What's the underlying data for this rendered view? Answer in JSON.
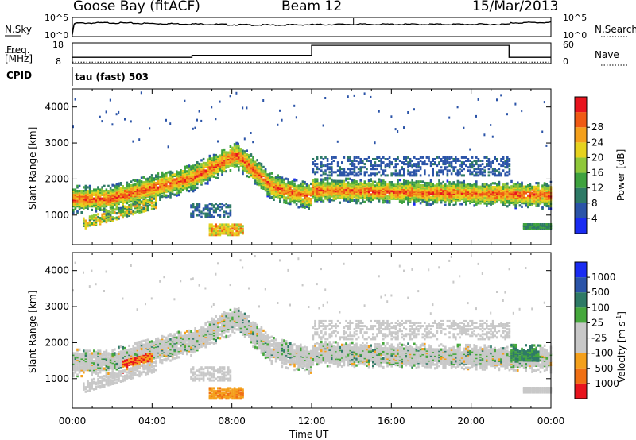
{
  "header": {
    "station": "Goose Bay (fitACF)",
    "beam": "Beam 12",
    "date": "15/Mar/2013"
  },
  "left_labels": {
    "nsky": "N.Sky",
    "freq": "Freq.",
    "freq_unit": "[MHz]",
    "cpid": "CPID"
  },
  "right_labels": {
    "nsearch": "N.Search",
    "nave": "Nave"
  },
  "cpid_text": "tau (fast) 503",
  "chart_data": [
    {
      "type": "line",
      "panel": "noise",
      "yticks_left": [
        "10^5",
        "10^0"
      ],
      "yticks_right": [
        "10^5",
        "10^0"
      ],
      "series": [
        {
          "name": "N.Sky",
          "x": [
            0,
            0.1,
            2,
            4,
            6,
            8,
            10,
            12,
            14,
            16,
            18,
            20,
            21.9,
            22,
            24
          ],
          "values": [
            0.5,
            3.5,
            3.6,
            3.4,
            3.3,
            3.1,
            3.0,
            3.1,
            3.2,
            3.2,
            3.2,
            3.2,
            3.2,
            3.6,
            3.7
          ]
        },
        {
          "name": "N.Search",
          "x": [
            0,
            24
          ],
          "values": [
            0.3,
            0.3
          ]
        }
      ]
    },
    {
      "type": "line",
      "panel": "frequency",
      "yticks_left": [
        "18",
        "8"
      ],
      "yticks_right": [
        "60",
        "0"
      ],
      "series": [
        {
          "name": "Freq.",
          "x": [
            0,
            6,
            6,
            12,
            12,
            21.9,
            21.9,
            24
          ],
          "values": [
            11,
            11,
            12,
            12,
            16.8,
            16.8,
            11,
            11
          ]
        },
        {
          "name": "Nave",
          "x": [
            0,
            24
          ],
          "values": [
            4,
            4
          ]
        }
      ]
    },
    {
      "type": "heatmap",
      "panel": "power",
      "ylabel": "Slant Range [km]",
      "yticks": [
        1000,
        2000,
        3000,
        4000
      ],
      "ylim": [
        180,
        4500
      ],
      "xlim": [
        0,
        24
      ],
      "colorbar_label": "Power [dB]",
      "colorbar_ticks": [
        4,
        8,
        12,
        16,
        20,
        24,
        28
      ],
      "colors": [
        "#1a2cf2",
        "#2b54a8",
        "#2e7a66",
        "#3ea23e",
        "#8fc83a",
        "#e6d21e",
        "#f4a01c",
        "#f05a14",
        "#e8141e"
      ]
    },
    {
      "type": "heatmap",
      "panel": "velocity",
      "ylabel": "Slant Range [km]",
      "xlabel": "Time UT",
      "yticks": [
        1000,
        2000,
        3000,
        4000
      ],
      "ylim": [
        180,
        4500
      ],
      "xlim": [
        0,
        24
      ],
      "xticks": [
        "00:00",
        "04:00",
        "08:00",
        "12:00",
        "16:00",
        "20:00",
        "00:00"
      ],
      "colorbar_label": "Velocity [m s",
      "colorbar_label_sup": "-1",
      "colorbar_label_end": "]",
      "colorbar_ticks": [
        1000,
        500,
        100,
        25,
        -25,
        -100,
        -500,
        -1000
      ],
      "colors": [
        "#1a2cf2",
        "#2b54a8",
        "#2e7a66",
        "#46a83c",
        "#c8c8c8",
        "#c8c8c8",
        "#f4a01c",
        "#f07014",
        "#e8141e"
      ]
    }
  ]
}
